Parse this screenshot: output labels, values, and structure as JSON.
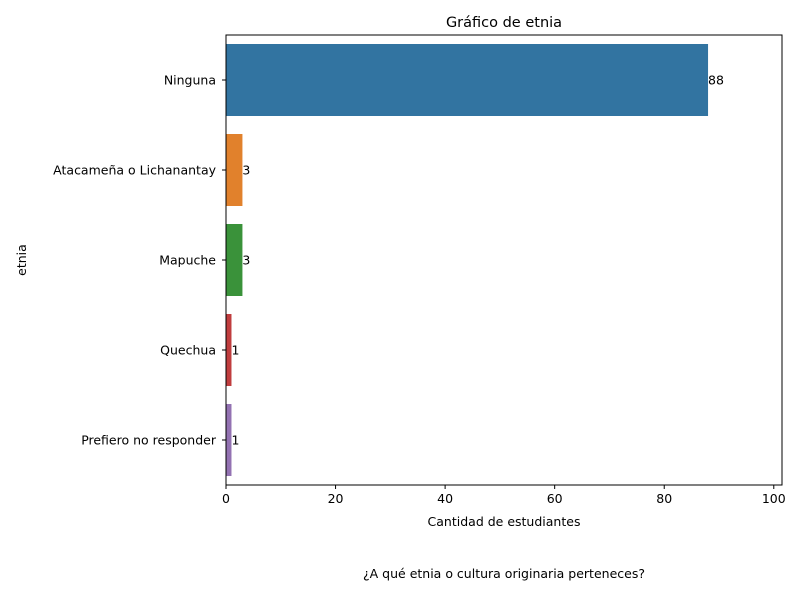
{
  "caption": "¿A qué etnia o cultura originaria perteneces?",
  "colors": {
    "bars": [
      "#3274a1",
      "#e1812c",
      "#3a923a",
      "#c03d3e",
      "#9372b2"
    ],
    "axis": "#000000",
    "background": "#ffffff"
  },
  "chart_data": {
    "type": "bar",
    "orientation": "horizontal",
    "title": "Gráfico de etnia",
    "xlabel": "Cantidad de estudiantes",
    "ylabel": "etnia",
    "categories": [
      "Ninguna",
      "Atacameña o Lichanantay",
      "Mapuche",
      "Quechua",
      "Prefiero no responder"
    ],
    "values": [
      88,
      3,
      3,
      1,
      1
    ],
    "data_labels": [
      "88",
      "3",
      "3",
      "1",
      "1"
    ],
    "xlim": [
      0,
      101.5
    ],
    "xticks": [
      0,
      20,
      40,
      60,
      80,
      100
    ],
    "grid": false,
    "legend": "none"
  }
}
